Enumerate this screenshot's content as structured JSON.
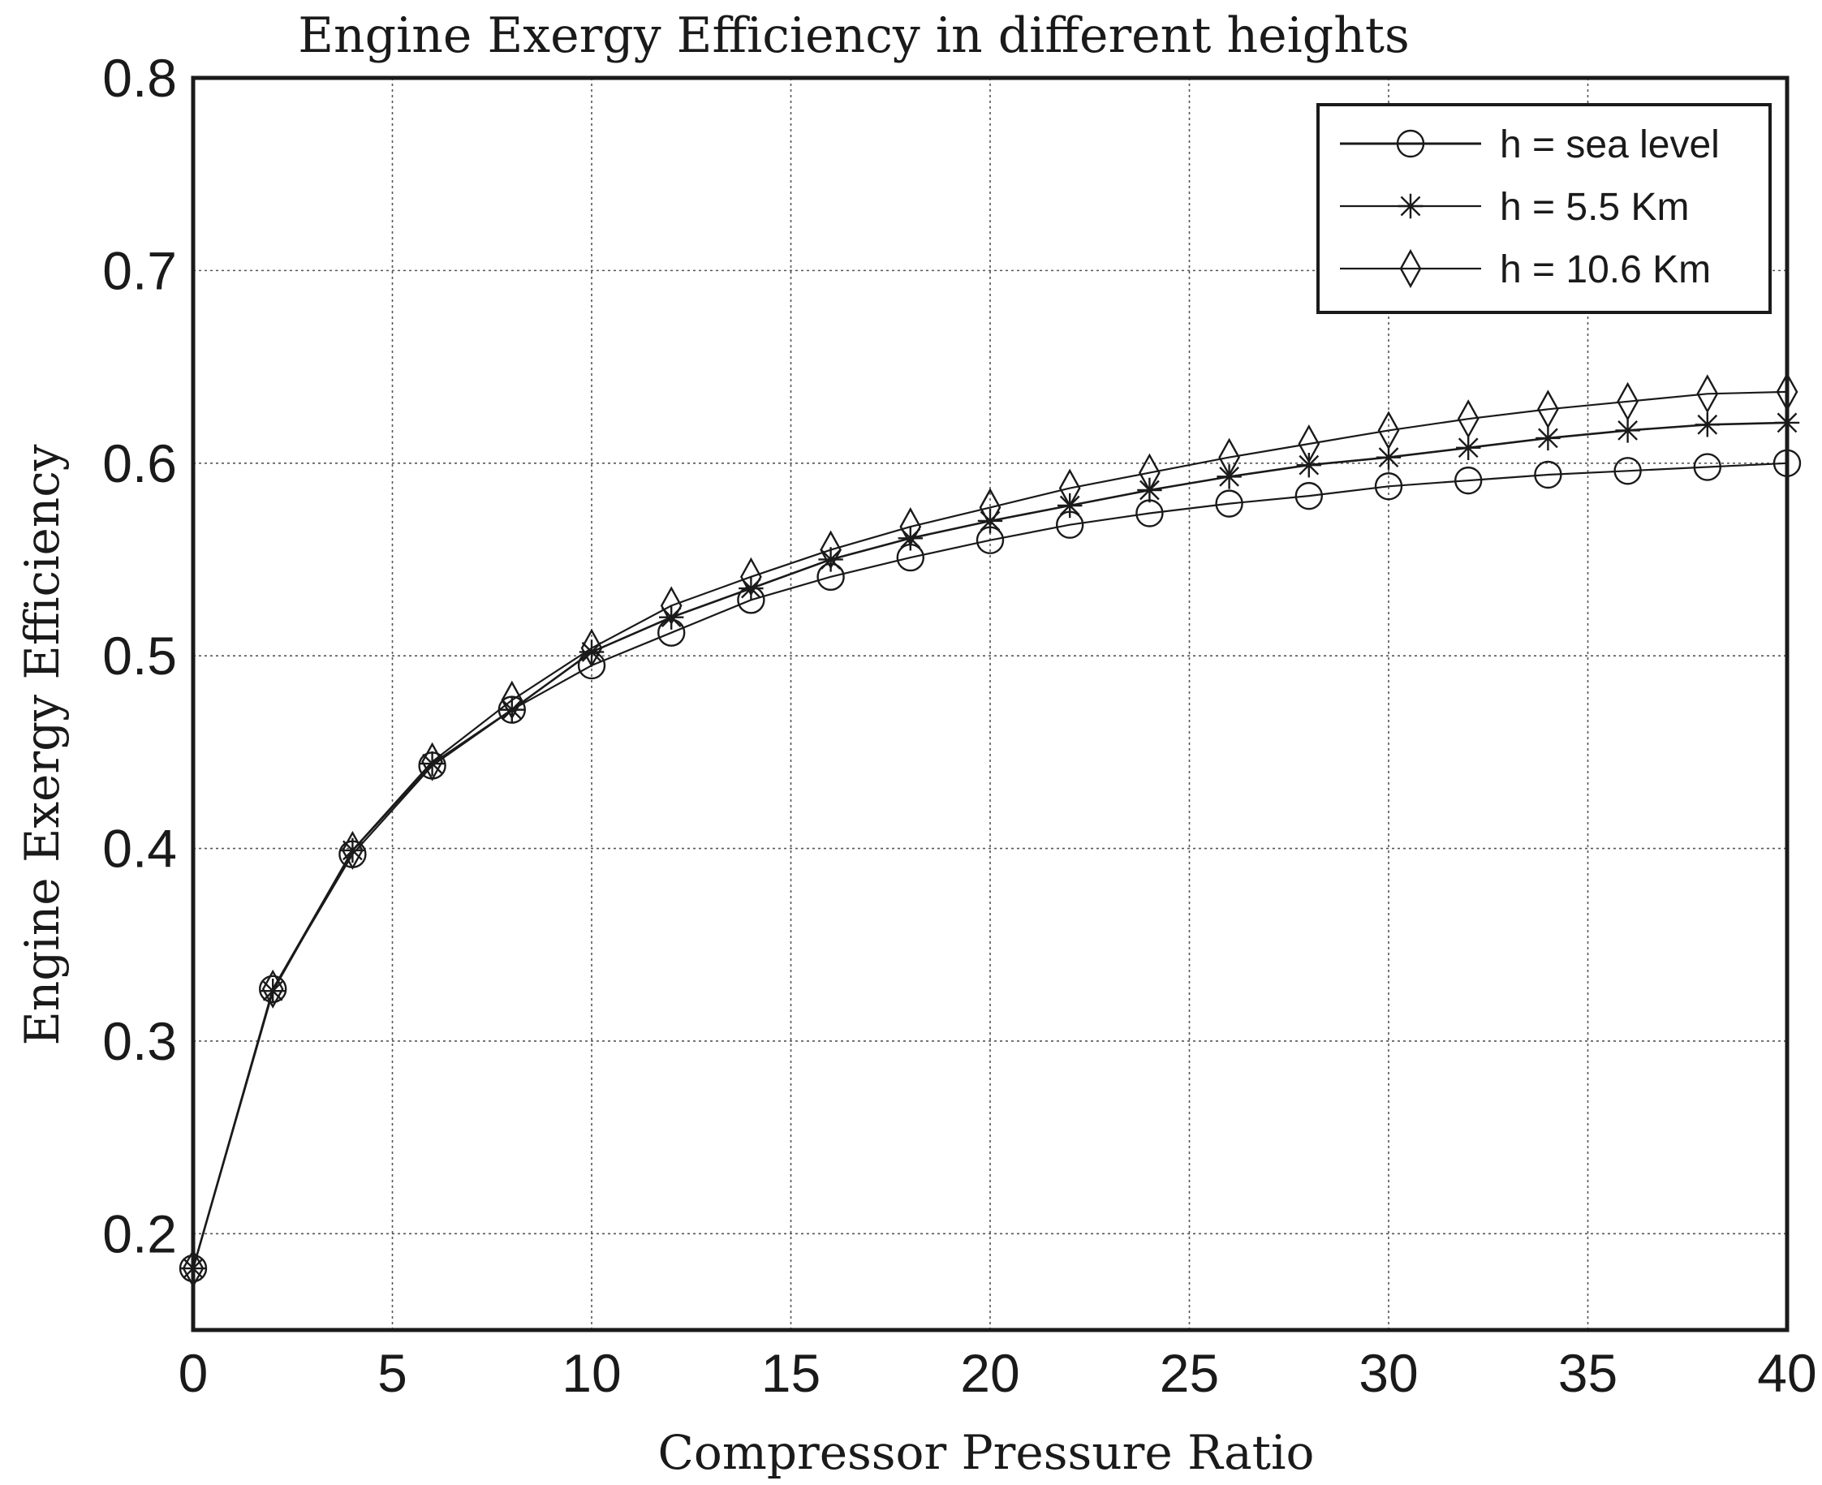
{
  "chart_data": {
    "type": "line",
    "title": "Engine Exergy Efficiency in different heights",
    "xlabel": "Compressor Pressure Ratio",
    "ylabel": "Engine Exergy Efficiency",
    "xlim": [
      0,
      40
    ],
    "ylim": [
      0.15,
      0.8
    ],
    "xticks": [
      0,
      5,
      10,
      15,
      20,
      25,
      30,
      35,
      40
    ],
    "yticks": [
      0.2,
      0.3,
      0.4,
      0.5,
      0.6,
      0.7,
      0.8
    ],
    "grid": true,
    "legend_position": "top-right",
    "x": [
      0,
      2,
      4,
      6,
      8,
      10,
      12,
      14,
      16,
      18,
      20,
      22,
      24,
      26,
      28,
      30,
      32,
      34,
      36,
      38,
      40
    ],
    "series": [
      {
        "name": "h = sea level",
        "marker": "circle",
        "values": [
          0.182,
          0.327,
          0.397,
          0.443,
          0.472,
          0.495,
          0.512,
          0.529,
          0.541,
          0.551,
          0.56,
          0.568,
          0.574,
          0.579,
          0.583,
          0.588,
          0.591,
          0.594,
          0.596,
          0.598,
          0.6
        ]
      },
      {
        "name": "h = 5.5 Km",
        "marker": "asterisk",
        "values": [
          0.182,
          0.326,
          0.399,
          0.444,
          0.472,
          0.502,
          0.52,
          0.535,
          0.55,
          0.561,
          0.57,
          0.578,
          0.586,
          0.593,
          0.599,
          0.603,
          0.608,
          0.613,
          0.617,
          0.62,
          0.621
        ]
      },
      {
        "name": "h = 10.6 Km",
        "marker": "diamond",
        "values": [
          0.182,
          0.327,
          0.399,
          0.445,
          0.477,
          0.504,
          0.526,
          0.541,
          0.555,
          0.567,
          0.577,
          0.587,
          0.595,
          0.603,
          0.61,
          0.617,
          0.623,
          0.628,
          0.632,
          0.636,
          0.637
        ]
      }
    ]
  }
}
